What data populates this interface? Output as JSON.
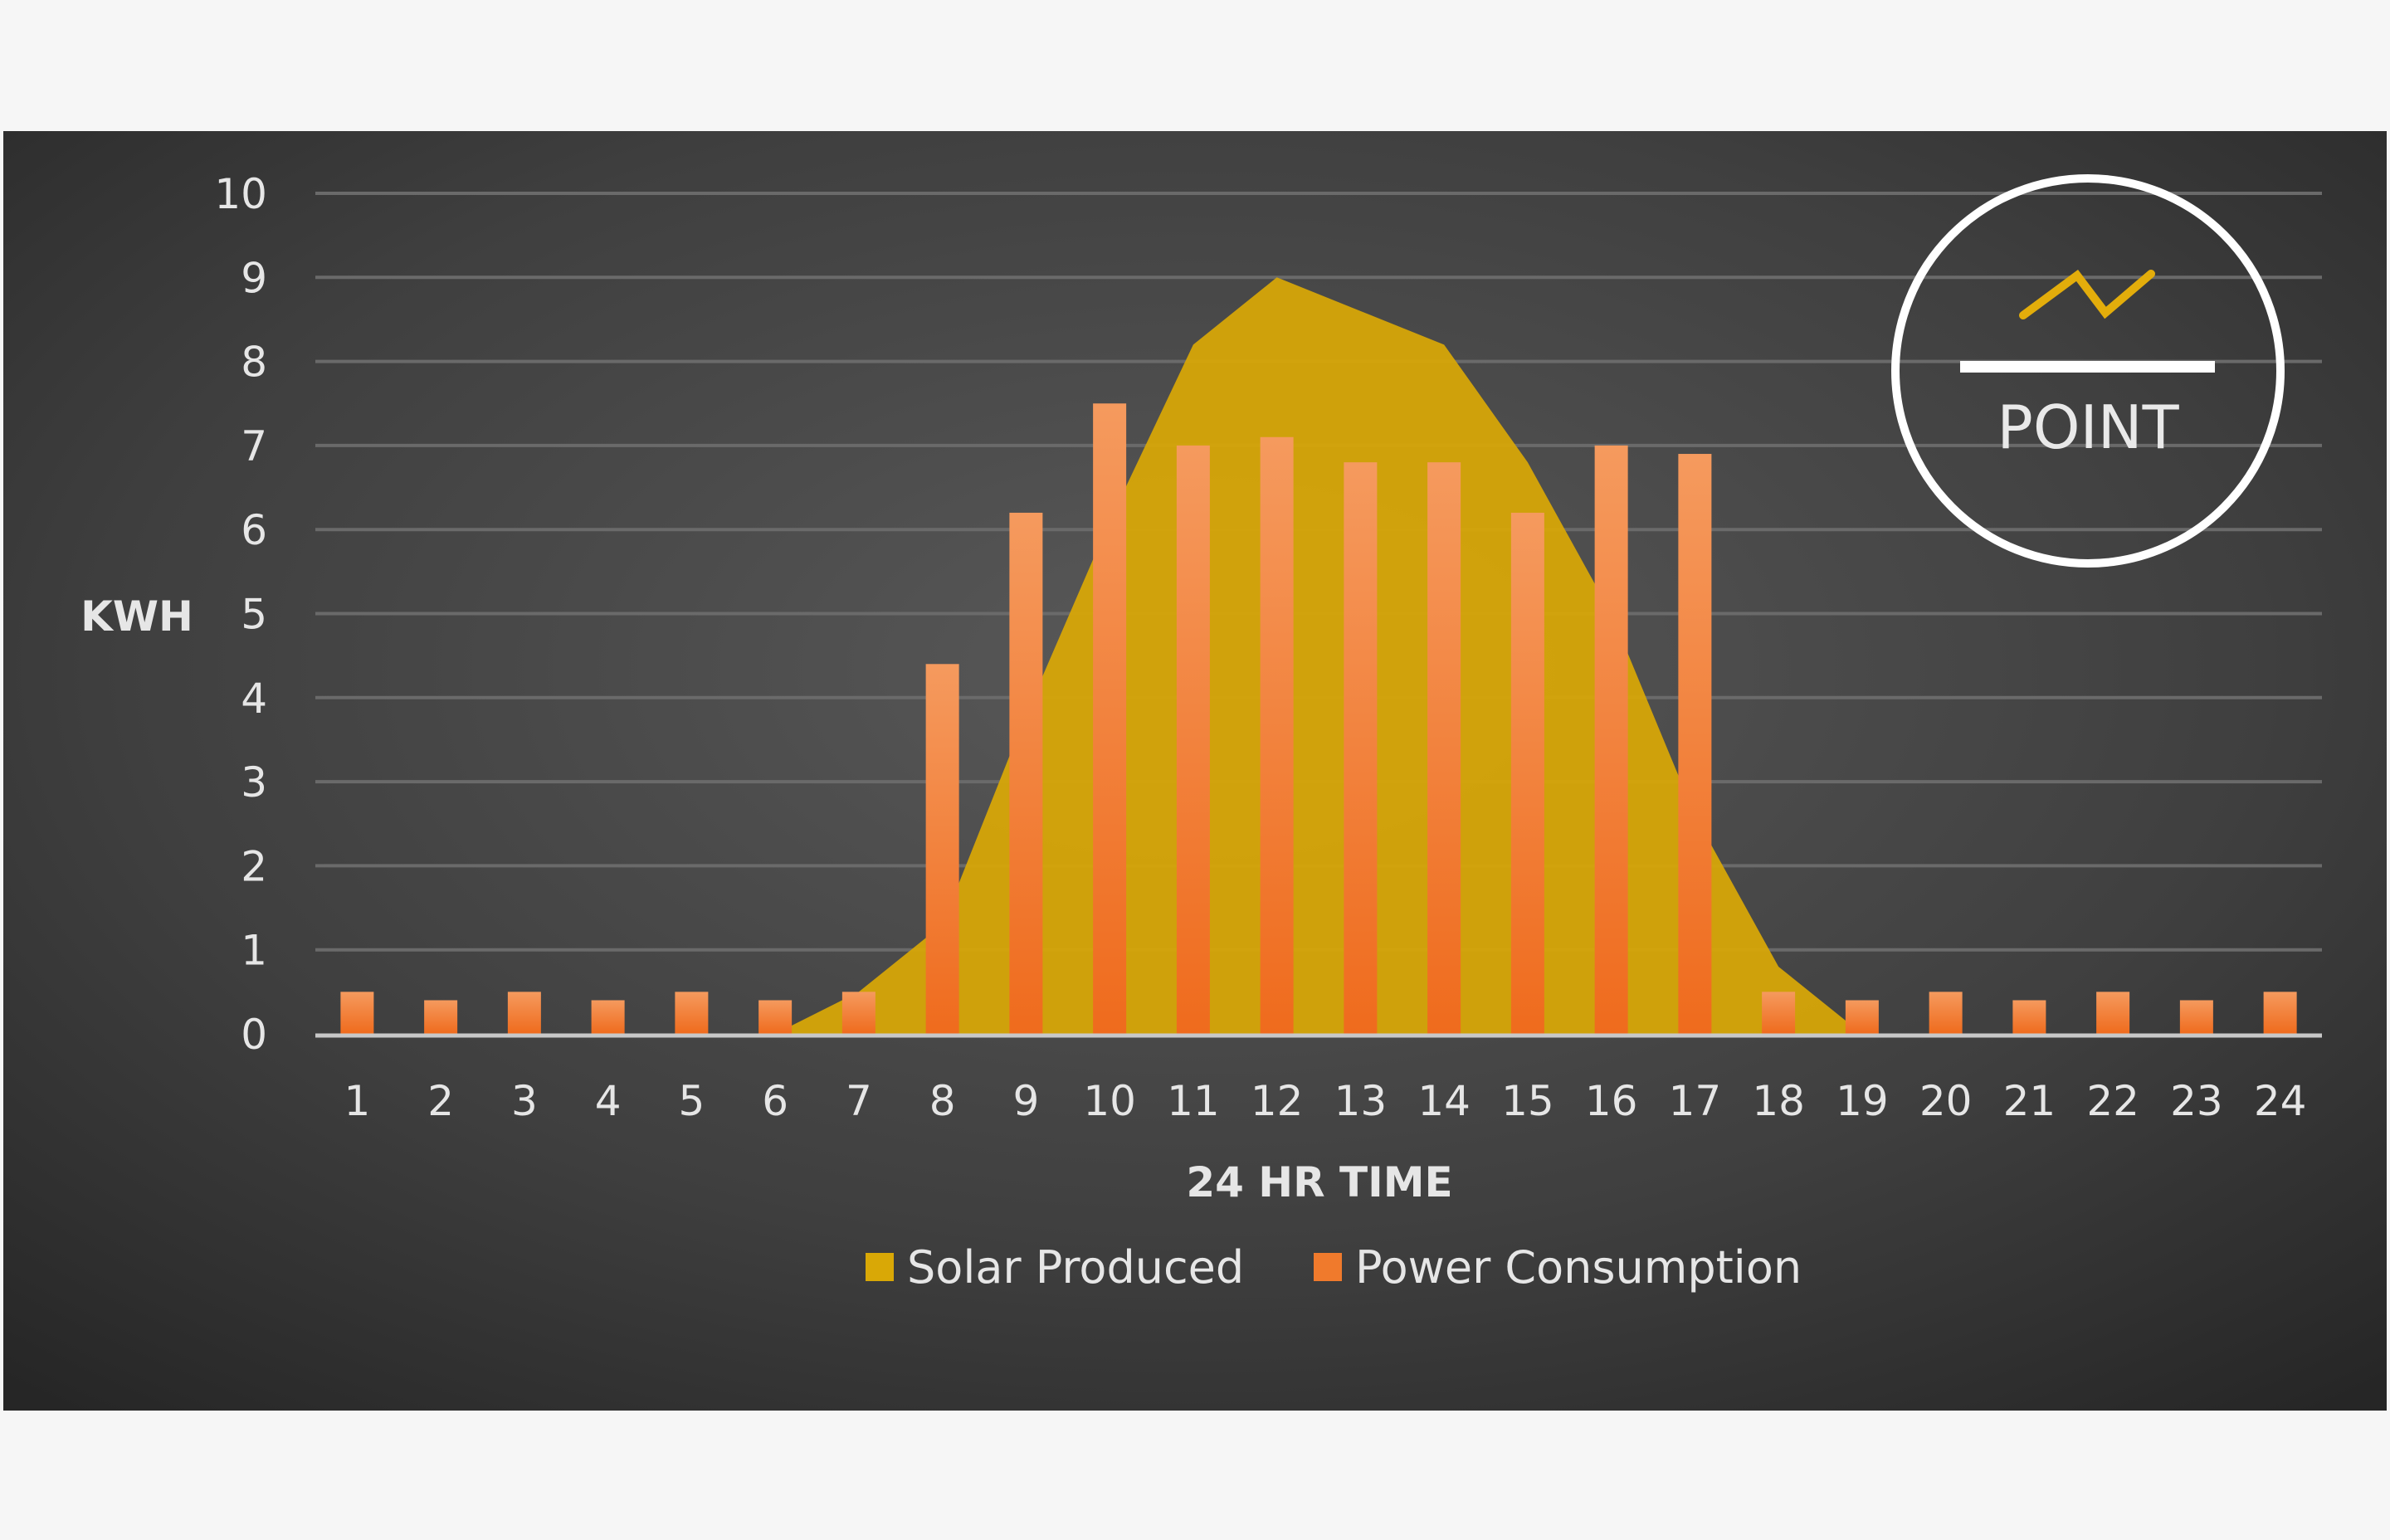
{
  "colors": {
    "solar": "#d9a806",
    "consumption": "#f07a2c",
    "grid": "#6a6a6a",
    "axis": "#c8c8c8",
    "text": "#e6e6e6"
  },
  "logo": {
    "text": "POINT",
    "icon": "zigzag-line-icon"
  },
  "chart_data": {
    "type": "bar",
    "ylabel": "KWH",
    "xlabel": "24 HR TIME",
    "ylim": [
      0,
      10
    ],
    "yticks": [
      "0",
      "1",
      "2",
      "3",
      "4",
      "5",
      "6",
      "7",
      "8",
      "9",
      "10"
    ],
    "categories": [
      "1",
      "2",
      "3",
      "4",
      "5",
      "6",
      "7",
      "8",
      "9",
      "10",
      "11",
      "12",
      "13",
      "14",
      "15",
      "16",
      "17",
      "18",
      "19",
      "20",
      "21",
      "22",
      "23",
      "24"
    ],
    "grid": true,
    "legend_position": "bottom",
    "series": [
      {
        "name": "Solar Produced",
        "type": "area",
        "values": [
          0,
          0,
          0,
          0,
          0,
          0,
          0.5,
          1.3,
          3.8,
          6.1,
          8.2,
          9.0,
          8.6,
          8.2,
          6.8,
          5.0,
          2.6,
          0.8,
          0,
          0,
          0,
          0,
          0,
          0
        ]
      },
      {
        "name": "Power Consumption",
        "type": "bar",
        "values": [
          0.5,
          0.4,
          0.5,
          0.4,
          0.5,
          0.4,
          0.5,
          4.4,
          6.2,
          7.5,
          7.0,
          7.1,
          6.8,
          6.8,
          6.2,
          7.0,
          6.9,
          0.5,
          0.4,
          0.5,
          0.4,
          0.5,
          0.4,
          0.5
        ]
      }
    ]
  }
}
